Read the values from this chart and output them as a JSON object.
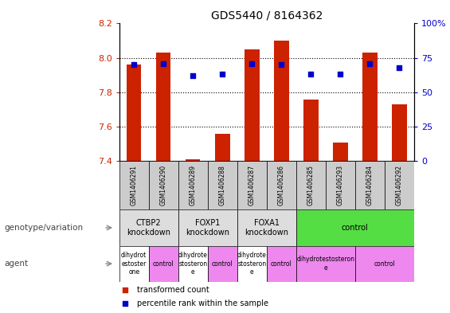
{
  "title": "GDS5440 / 8164362",
  "samples": [
    "GSM1406291",
    "GSM1406290",
    "GSM1406289",
    "GSM1406288",
    "GSM1406287",
    "GSM1406286",
    "GSM1406285",
    "GSM1406293",
    "GSM1406284",
    "GSM1406292"
  ],
  "transformed_count": [
    7.96,
    8.03,
    7.41,
    7.56,
    8.05,
    8.1,
    7.76,
    7.51,
    8.03,
    7.73
  ],
  "percentile_rank": [
    70,
    71,
    62,
    63,
    71,
    70,
    63,
    63,
    71,
    68
  ],
  "ylim_left": [
    7.4,
    8.2
  ],
  "ylim_right": [
    0,
    100
  ],
  "yticks_left": [
    7.4,
    7.6,
    7.8,
    8.0,
    8.2
  ],
  "yticks_right": [
    0,
    25,
    50,
    75,
    100
  ],
  "ytick_labels_right": [
    "0",
    "25",
    "50",
    "75",
    "100%"
  ],
  "bar_color": "#cc2200",
  "dot_color": "#0000cc",
  "bar_bottom": 7.4,
  "genotype_groups": [
    {
      "label": "CTBP2\nknockdown",
      "start": 0,
      "end": 2,
      "color": "#dddddd"
    },
    {
      "label": "FOXP1\nknockdown",
      "start": 2,
      "end": 4,
      "color": "#dddddd"
    },
    {
      "label": "FOXA1\nknockdown",
      "start": 4,
      "end": 6,
      "color": "#dddddd"
    },
    {
      "label": "control",
      "start": 6,
      "end": 10,
      "color": "#55dd44"
    }
  ],
  "agent_groups": [
    {
      "label": "dihydrot\nestoster\none",
      "start": 0,
      "end": 1,
      "color": "#ee88ee"
    },
    {
      "label": "control",
      "start": 1,
      "end": 2,
      "color": "#ee88ee"
    },
    {
      "label": "dihydrote\nstosteron\ne",
      "start": 2,
      "end": 3,
      "color": "#ee88ee"
    },
    {
      "label": "control",
      "start": 3,
      "end": 4,
      "color": "#ee88ee"
    },
    {
      "label": "dihydrote\nstosteron\ne",
      "start": 4,
      "end": 5,
      "color": "#ee88ee"
    },
    {
      "label": "control",
      "start": 5,
      "end": 6,
      "color": "#ee88ee"
    },
    {
      "label": "dihydrotestosteron\ne",
      "start": 6,
      "end": 8,
      "color": "#ee88ee"
    },
    {
      "label": "control",
      "start": 8,
      "end": 10,
      "color": "#ee88ee"
    }
  ],
  "agent_white": [
    0,
    2,
    4
  ],
  "legend_items": [
    {
      "label": "transformed count",
      "color": "#cc2200"
    },
    {
      "label": "percentile rank within the sample",
      "color": "#0000cc"
    }
  ],
  "annotation_genotype": "genotype/variation",
  "annotation_agent": "agent",
  "title_fontsize": 10,
  "tick_fontsize": 8,
  "sample_fontsize": 5.5,
  "geno_fontsize": 7,
  "agent_fontsize": 5.5,
  "legend_fontsize": 7
}
